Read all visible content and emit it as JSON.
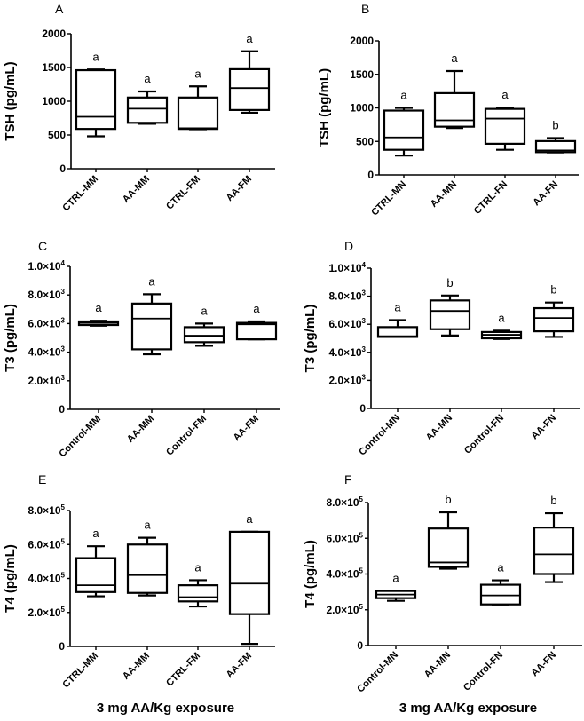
{
  "chart_data": [
    {
      "type": "box",
      "panel_label": "A",
      "ylabel": "TSH (pg/mL)",
      "xlabel": "",
      "ylim": [
        0,
        2000
      ],
      "yticks": [
        0,
        500,
        1000,
        1500,
        2000
      ],
      "ytick_labels": [
        {
          "base": "0",
          "exp": ""
        },
        {
          "base": "500",
          "exp": ""
        },
        {
          "base": "1000",
          "exp": ""
        },
        {
          "base": "1500",
          "exp": ""
        },
        {
          "base": "2000",
          "exp": ""
        }
      ],
      "categories": [
        "CTRL-MM",
        "AA-MM",
        "CTRL-FM",
        "AA-FM"
      ],
      "boxes": [
        {
          "min": 480,
          "q1": 590,
          "median": 770,
          "q3": 1460,
          "max": 1470
        },
        {
          "min": 665,
          "q1": 680,
          "median": 890,
          "q3": 1055,
          "max": 1145
        },
        {
          "min": 585,
          "q1": 590,
          "median": 600,
          "q3": 1055,
          "max": 1220
        },
        {
          "min": 830,
          "q1": 870,
          "median": 1195,
          "q3": 1475,
          "max": 1740
        }
      ],
      "significance": [
        "a",
        "a",
        "a",
        "a"
      ]
    },
    {
      "type": "box",
      "panel_label": "B",
      "ylabel": "TSH (pg/mL)",
      "xlabel": "",
      "ylim": [
        0,
        2000
      ],
      "yticks": [
        0,
        500,
        1000,
        1500,
        2000
      ],
      "ytick_labels": [
        {
          "base": "0",
          "exp": ""
        },
        {
          "base": "500",
          "exp": ""
        },
        {
          "base": "1000",
          "exp": ""
        },
        {
          "base": "1500",
          "exp": ""
        },
        {
          "base": "2000",
          "exp": ""
        }
      ],
      "categories": [
        "CTRL-MN",
        "AA-MN",
        "CTRL-FN",
        "AA-FN"
      ],
      "boxes": [
        {
          "min": 290,
          "q1": 375,
          "median": 560,
          "q3": 960,
          "max": 1000
        },
        {
          "min": 700,
          "q1": 720,
          "median": 815,
          "q3": 1220,
          "max": 1550
        },
        {
          "min": 375,
          "q1": 465,
          "median": 840,
          "q3": 985,
          "max": 1005
        },
        {
          "min": 335,
          "q1": 340,
          "median": 365,
          "q3": 505,
          "max": 550
        }
      ],
      "significance": [
        "a",
        "a",
        "a",
        "b"
      ]
    },
    {
      "type": "box",
      "panel_label": "C",
      "ylabel": "T3 (pg/mL)",
      "xlabel": "",
      "ylim": [
        0,
        10000
      ],
      "yticks": [
        0,
        2000,
        4000,
        6000,
        8000,
        10000
      ],
      "ytick_labels": [
        {
          "base": "0",
          "exp": ""
        },
        {
          "base": "2.0×10",
          "exp": "3"
        },
        {
          "base": "4.0×10",
          "exp": "3"
        },
        {
          "base": "6.0×10",
          "exp": "3"
        },
        {
          "base": "8.0×10",
          "exp": "3"
        },
        {
          "base": "1.0×10",
          "exp": "4"
        }
      ],
      "categories": [
        "Control-MM",
        "AA-MM",
        "Control-FM",
        "AA-FM"
      ],
      "boxes": [
        {
          "min": 5850,
          "q1": 5900,
          "median": 6050,
          "q3": 6150,
          "max": 6200
        },
        {
          "min": 3850,
          "q1": 4200,
          "median": 6350,
          "q3": 7400,
          "max": 8050
        },
        {
          "min": 4450,
          "q1": 4700,
          "median": 5150,
          "q3": 5750,
          "max": 6000
        },
        {
          "min": 4900,
          "q1": 4900,
          "median": 5950,
          "q3": 6050,
          "max": 6150
        }
      ],
      "significance": [
        "a",
        "a",
        "a",
        "a"
      ]
    },
    {
      "type": "box",
      "panel_label": "D",
      "ylabel": "T3 (pg/mL)",
      "xlabel": "",
      "ylim": [
        0,
        10000
      ],
      "yticks": [
        0,
        2000,
        4000,
        6000,
        8000,
        10000
      ],
      "ytick_labels": [
        {
          "base": "0",
          "exp": ""
        },
        {
          "base": "2.0×10",
          "exp": "3"
        },
        {
          "base": "4.0×10",
          "exp": "3"
        },
        {
          "base": "6.0×10",
          "exp": "3"
        },
        {
          "base": "8.0×10",
          "exp": "3"
        },
        {
          "base": "1.0×10",
          "exp": "4"
        }
      ],
      "categories": [
        "Control-MN",
        "AA-MN",
        "Control-FN",
        "AA-FN"
      ],
      "boxes": [
        {
          "min": 5100,
          "q1": 5100,
          "median": 5150,
          "q3": 5800,
          "max": 6300
        },
        {
          "min": 5200,
          "q1": 5650,
          "median": 6950,
          "q3": 7700,
          "max": 8050
        },
        {
          "min": 4950,
          "q1": 5000,
          "median": 5250,
          "q3": 5450,
          "max": 5550
        },
        {
          "min": 5100,
          "q1": 5500,
          "median": 6450,
          "q3": 7150,
          "max": 7550
        }
      ],
      "significance": [
        "a",
        "b",
        "a",
        "b"
      ]
    },
    {
      "type": "box",
      "panel_label": "E",
      "ylabel": "T4 (pg/mL)",
      "xlabel": "3 mg AA/Kg exposure",
      "ylim": [
        0,
        800000
      ],
      "yticks": [
        0,
        200000,
        400000,
        600000,
        800000
      ],
      "ytick_labels": [
        {
          "base": "0",
          "exp": ""
        },
        {
          "base": "2.0×10",
          "exp": "5"
        },
        {
          "base": "4.0×10",
          "exp": "5"
        },
        {
          "base": "6.0×10",
          "exp": "5"
        },
        {
          "base": "8.0×10",
          "exp": "5"
        }
      ],
      "categories": [
        "CTRL-MM",
        "AA-MM",
        "CTRL-FM",
        "AA-FM"
      ],
      "boxes": [
        {
          "min": 295000,
          "q1": 320000,
          "median": 360000,
          "q3": 520000,
          "max": 590000
        },
        {
          "min": 300000,
          "q1": 315000,
          "median": 420000,
          "q3": 600000,
          "max": 640000
        },
        {
          "min": 235000,
          "q1": 265000,
          "median": 290000,
          "q3": 360000,
          "max": 390000
        },
        {
          "min": 15000,
          "q1": 190000,
          "median": 370000,
          "q3": 675000,
          "max": 675000
        }
      ],
      "significance": [
        "a",
        "a",
        "a",
        "a"
      ]
    },
    {
      "type": "box",
      "panel_label": "F",
      "ylabel": "T4 (pg/mL)",
      "xlabel": "3 mg AA/Kg exposure",
      "ylim": [
        0,
        800000
      ],
      "yticks": [
        0,
        200000,
        400000,
        600000,
        800000
      ],
      "ytick_labels": [
        {
          "base": "0",
          "exp": ""
        },
        {
          "base": "2.0×10",
          "exp": "5"
        },
        {
          "base": "4.0×10",
          "exp": "5"
        },
        {
          "base": "6.0×10",
          "exp": "5"
        },
        {
          "base": "8.0×10",
          "exp": "5"
        }
      ],
      "categories": [
        "Control-MN",
        "AA-MN",
        "Control-FN",
        "AA-FN"
      ],
      "boxes": [
        {
          "min": 250000,
          "q1": 265000,
          "median": 285000,
          "q3": 305000,
          "max": 305000
        },
        {
          "min": 430000,
          "q1": 440000,
          "median": 465000,
          "q3": 655000,
          "max": 745000
        },
        {
          "min": 230000,
          "q1": 230000,
          "median": 280000,
          "q3": 340000,
          "max": 365000
        },
        {
          "min": 355000,
          "q1": 400000,
          "median": 510000,
          "q3": 660000,
          "max": 740000
        }
      ],
      "significance": [
        "a",
        "b",
        "a",
        "b"
      ]
    }
  ]
}
